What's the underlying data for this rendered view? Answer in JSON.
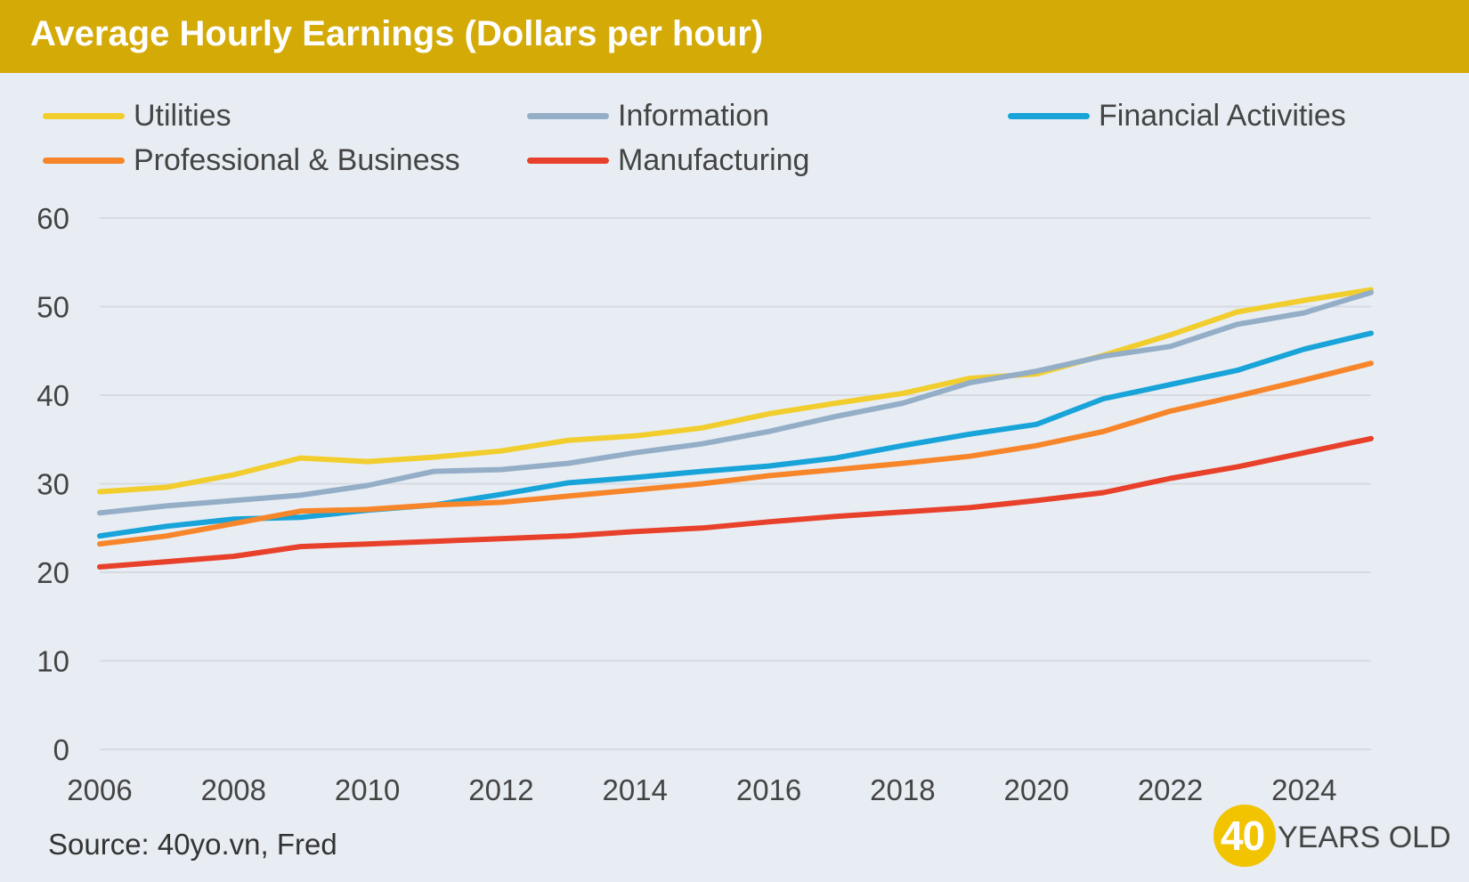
{
  "header": {
    "title": "Average Hourly Earnings (Dollars per hour)"
  },
  "source": "Source: 40yo.vn, Fred",
  "logo": {
    "number": "40",
    "text": "YEARS OLD"
  },
  "colors": {
    "title_bar": "#d4aa06",
    "background": "#e8edf3",
    "utilities": "#f2cd2e",
    "information": "#94aec8",
    "financial": "#18a3d9",
    "professional": "#f7862b",
    "manufacturing": "#e8412b"
  },
  "chart_data": {
    "type": "line",
    "title": "Average Hourly Earnings (Dollars per hour)",
    "xlabel": "",
    "ylabel": "",
    "xlim": [
      2006,
      2025
    ],
    "ylim": [
      0,
      60
    ],
    "x_ticks": [
      2006,
      2008,
      2010,
      2012,
      2014,
      2016,
      2018,
      2020,
      2022,
      2024
    ],
    "y_ticks": [
      0,
      10,
      20,
      30,
      40,
      50,
      60
    ],
    "grid": "horizontal",
    "legend": "top",
    "x": [
      2006,
      2007,
      2008,
      2009,
      2010,
      2011,
      2012,
      2013,
      2014,
      2015,
      2016,
      2017,
      2018,
      2019,
      2020,
      2021,
      2022,
      2023,
      2024,
      2025
    ],
    "series": [
      {
        "name": "Utilities",
        "color": "#f2cd2e",
        "values": [
          29.1,
          29.6,
          31.0,
          32.9,
          32.5,
          33.0,
          33.7,
          34.9,
          35.4,
          36.3,
          37.9,
          39.1,
          40.2,
          41.9,
          42.4,
          44.5,
          46.8,
          49.4,
          50.7,
          51.9
        ]
      },
      {
        "name": "Information",
        "color": "#94aec8",
        "values": [
          26.7,
          27.5,
          28.1,
          28.7,
          29.8,
          31.4,
          31.6,
          32.3,
          33.5,
          34.5,
          35.9,
          37.6,
          39.1,
          41.4,
          42.7,
          44.4,
          45.5,
          48.0,
          49.3,
          51.6
        ]
      },
      {
        "name": "Financial Activities",
        "color": "#18a3d9",
        "values": [
          24.1,
          25.2,
          26.0,
          26.2,
          27.0,
          27.6,
          28.8,
          30.1,
          30.7,
          31.4,
          32.0,
          32.9,
          34.3,
          35.6,
          36.7,
          39.6,
          41.2,
          42.8,
          45.2,
          47.0
        ]
      },
      {
        "name": "Professional & Business",
        "color": "#f7862b",
        "values": [
          23.2,
          24.1,
          25.5,
          26.9,
          27.1,
          27.6,
          27.9,
          28.6,
          29.3,
          30.0,
          30.9,
          31.6,
          32.3,
          33.1,
          34.3,
          35.9,
          38.2,
          39.9,
          41.7,
          43.6
        ]
      },
      {
        "name": "Manufacturing",
        "color": "#e8412b",
        "values": [
          20.6,
          21.2,
          21.8,
          22.9,
          23.2,
          23.5,
          23.8,
          24.1,
          24.6,
          25.0,
          25.7,
          26.3,
          26.8,
          27.3,
          28.1,
          29.0,
          30.6,
          31.9,
          33.5,
          35.1
        ]
      }
    ]
  }
}
